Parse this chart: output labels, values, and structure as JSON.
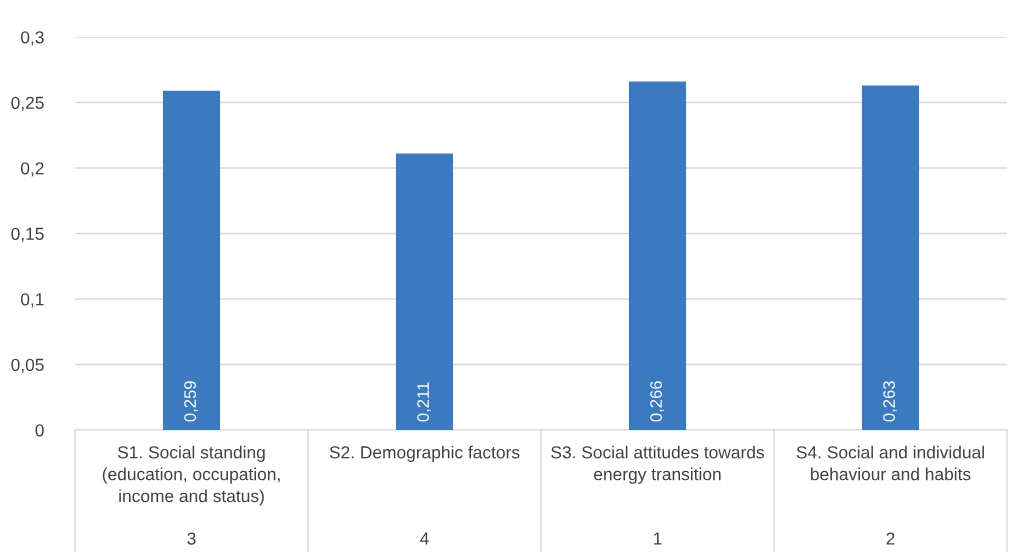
{
  "chart_data": {
    "type": "bar",
    "categories": [
      "S1. Social standing\n(education, occupation,\nincome and status)",
      "S2. Demographic factors",
      "S3. Social attitudes towards\nenergy transition",
      "S4. Social and individual\nbehaviour and habits"
    ],
    "values": [
      0.259,
      0.211,
      0.266,
      0.263
    ],
    "value_labels": [
      "0,259",
      "0,211",
      "0,266",
      "0,263"
    ],
    "color": "#3c7abf",
    "annotations": [
      "3",
      "4",
      "1",
      "2"
    ],
    "ylim": [
      0,
      0.3
    ],
    "yticks": [
      0,
      {
        "value": 0.05,
        "label": "0,05"
      },
      {
        "value": 0.1,
        "label": "0,1"
      },
      {
        "value": 0.15,
        "label": "0,15"
      },
      {
        "value": 0.2,
        "label": "0,2"
      },
      {
        "value": 0.25,
        "label": "0,25"
      },
      {
        "value": 0.3,
        "label": "0,3"
      }
    ],
    "grid": "y",
    "legend": false
  }
}
